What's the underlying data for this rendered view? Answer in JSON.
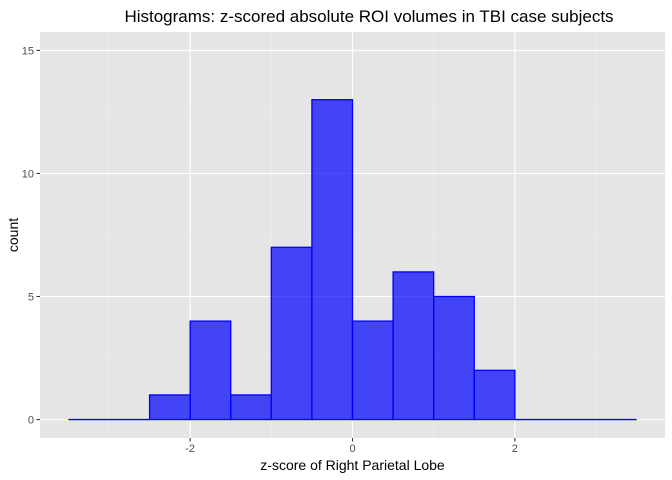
{
  "chart_data": {
    "type": "bar",
    "subtype": "histogram",
    "title": "Histograms: z-scored absolute ROI volumes in TBI case subjects",
    "xlabel": "z-score of Right Parietal Lobe",
    "ylabel": "count",
    "bin_width": 0.5,
    "bins": [
      {
        "x0": -3.5,
        "x1": -3.0,
        "count": 0
      },
      {
        "x0": -3.0,
        "x1": -2.5,
        "count": 0
      },
      {
        "x0": -2.5,
        "x1": -2.0,
        "count": 1
      },
      {
        "x0": -2.0,
        "x1": -1.5,
        "count": 4
      },
      {
        "x0": -1.5,
        "x1": -1.0,
        "count": 1
      },
      {
        "x0": -1.0,
        "x1": -0.5,
        "count": 7
      },
      {
        "x0": -0.5,
        "x1": 0.0,
        "count": 13
      },
      {
        "x0": 0.0,
        "x1": 0.5,
        "count": 4
      },
      {
        "x0": 0.5,
        "x1": 1.0,
        "count": 6
      },
      {
        "x0": 1.0,
        "x1": 1.5,
        "count": 5
      },
      {
        "x0": 1.5,
        "x1": 2.0,
        "count": 2
      },
      {
        "x0": 2.0,
        "x1": 2.5,
        "count": 0
      },
      {
        "x0": 2.5,
        "x1": 3.0,
        "count": 0
      },
      {
        "x0": 3.0,
        "x1": 3.5,
        "count": 0
      }
    ],
    "xlim": [
      -3.85,
      3.85
    ],
    "ylim": [
      -0.75,
      15.75
    ],
    "x_ticks": [
      {
        "value": -2,
        "label": "-2"
      },
      {
        "value": 0,
        "label": "0"
      },
      {
        "value": 2,
        "label": "2"
      }
    ],
    "y_ticks": [
      {
        "value": 0,
        "label": "0"
      },
      {
        "value": 5,
        "label": "5"
      },
      {
        "value": 10,
        "label": "10"
      },
      {
        "value": 15,
        "label": "15"
      }
    ],
    "x_minor_ticks": [
      -3,
      -1,
      1,
      3
    ],
    "y_minor_ticks": [
      2.5,
      7.5,
      12.5
    ],
    "grid": true,
    "bar_color": "#0000ff",
    "bar_alpha": 0.7,
    "panel_color": "#e5e5e5"
  }
}
